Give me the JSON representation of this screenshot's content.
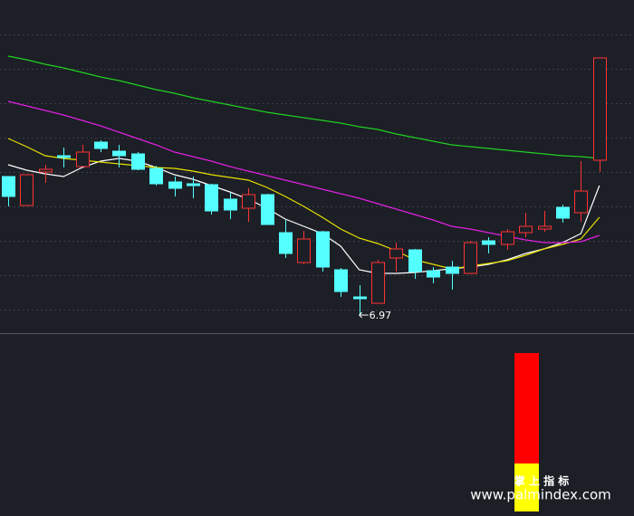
{
  "chart_data": {
    "type": "candlestick",
    "ylim": [
      6.77,
      10.45
    ],
    "yticks": [
      10.07,
      9.69,
      9.31,
      8.93,
      8.55,
      8.17,
      7.79,
      7.41,
      7.03
    ],
    "grid": true,
    "up_color": "#ff3333",
    "down_color": "#54ffff",
    "open": [
      8.5,
      8.18,
      8.55,
      8.73,
      8.61,
      8.88,
      8.78,
      8.75,
      8.59,
      8.44,
      8.42,
      8.41,
      8.25,
      8.15,
      8.3,
      7.88,
      7.55,
      7.89,
      7.47,
      7.17,
      7.1,
      7.6,
      7.69,
      7.46,
      7.5,
      7.43,
      7.79,
      7.75,
      7.88,
      7.92,
      8.16,
      8.1,
      8.68
    ],
    "high": [
      8.5,
      8.52,
      8.63,
      8.82,
      8.85,
      8.9,
      8.85,
      8.77,
      8.62,
      8.5,
      8.5,
      8.42,
      8.32,
      8.37,
      8.31,
      8.02,
      7.9,
      7.9,
      7.49,
      7.3,
      7.58,
      7.77,
      7.7,
      7.5,
      7.57,
      7.79,
      7.83,
      7.92,
      8.1,
      8.12,
      8.19,
      8.67,
      9.81
    ],
    "low": [
      8.17,
      8.18,
      8.43,
      8.6,
      8.61,
      8.77,
      8.6,
      8.57,
      8.4,
      8.28,
      8.26,
      8.08,
      8.03,
      8.0,
      7.97,
      7.6,
      7.53,
      7.45,
      7.17,
      6.97,
      7.1,
      7.45,
      7.37,
      7.32,
      7.25,
      7.42,
      7.65,
      7.69,
      7.83,
      7.89,
      7.99,
      8.0,
      8.55
    ],
    "close": [
      8.28,
      8.52,
      8.58,
      8.71,
      8.77,
      8.81,
      8.73,
      8.58,
      8.42,
      8.37,
      8.4,
      8.12,
      8.13,
      8.3,
      7.97,
      7.65,
      7.81,
      7.5,
      7.23,
      7.15,
      7.55,
      7.7,
      7.45,
      7.39,
      7.43,
      7.77,
      7.75,
      7.89,
      7.95,
      7.95,
      8.04,
      8.34,
      9.81
    ],
    "series": [
      {
        "color": "#ffffff",
        "values": [
          8.63,
          8.57,
          8.53,
          8.5,
          8.6,
          8.67,
          8.7,
          8.67,
          8.6,
          8.52,
          8.47,
          8.4,
          8.33,
          8.25,
          8.15,
          8.03,
          7.95,
          7.87,
          7.73,
          7.47,
          7.43,
          7.43,
          7.44,
          7.46,
          7.48,
          7.5,
          7.53,
          7.58,
          7.65,
          7.7,
          7.77,
          7.87,
          8.4
        ]
      },
      {
        "color": "#e8e000",
        "values": [
          8.92,
          8.83,
          8.73,
          8.7,
          8.68,
          8.66,
          8.64,
          8.62,
          8.6,
          8.59,
          8.56,
          8.52,
          8.49,
          8.46,
          8.38,
          8.28,
          8.17,
          8.05,
          7.92,
          7.82,
          7.76,
          7.68,
          7.58,
          7.53,
          7.48,
          7.51,
          7.54,
          7.57,
          7.63,
          7.7,
          7.75,
          7.81,
          8.05
        ]
      },
      {
        "color": "#e020e0",
        "values": [
          9.33,
          9.28,
          9.23,
          9.18,
          9.12,
          9.06,
          8.99,
          8.92,
          8.85,
          8.77,
          8.72,
          8.67,
          8.61,
          8.56,
          8.51,
          8.46,
          8.41,
          8.36,
          8.31,
          8.26,
          8.2,
          8.14,
          8.08,
          8.02,
          7.95,
          7.92,
          7.88,
          7.84,
          7.8,
          7.77,
          7.77,
          7.78,
          7.85
        ]
      },
      {
        "color": "#20d020",
        "values": [
          9.83,
          9.79,
          9.74,
          9.7,
          9.65,
          9.6,
          9.56,
          9.51,
          9.46,
          9.42,
          9.37,
          9.33,
          9.29,
          9.25,
          9.21,
          9.18,
          9.15,
          9.12,
          9.09,
          9.05,
          9.02,
          8.97,
          8.93,
          8.89,
          8.85,
          8.83,
          8.81,
          8.79,
          8.77,
          8.75,
          8.73,
          8.72,
          8.7
        ]
      }
    ],
    "indicator": {
      "ylim": [
        0,
        175
      ],
      "series": [
        {
          "color": "#ffff00",
          "values": [
            53
          ]
        },
        {
          "color": "#ff0000",
          "values": [
            122
          ]
        }
      ]
    }
  },
  "watermark": {
    "title": "掌 上 指 标",
    "url": "www.palmindex.com"
  }
}
